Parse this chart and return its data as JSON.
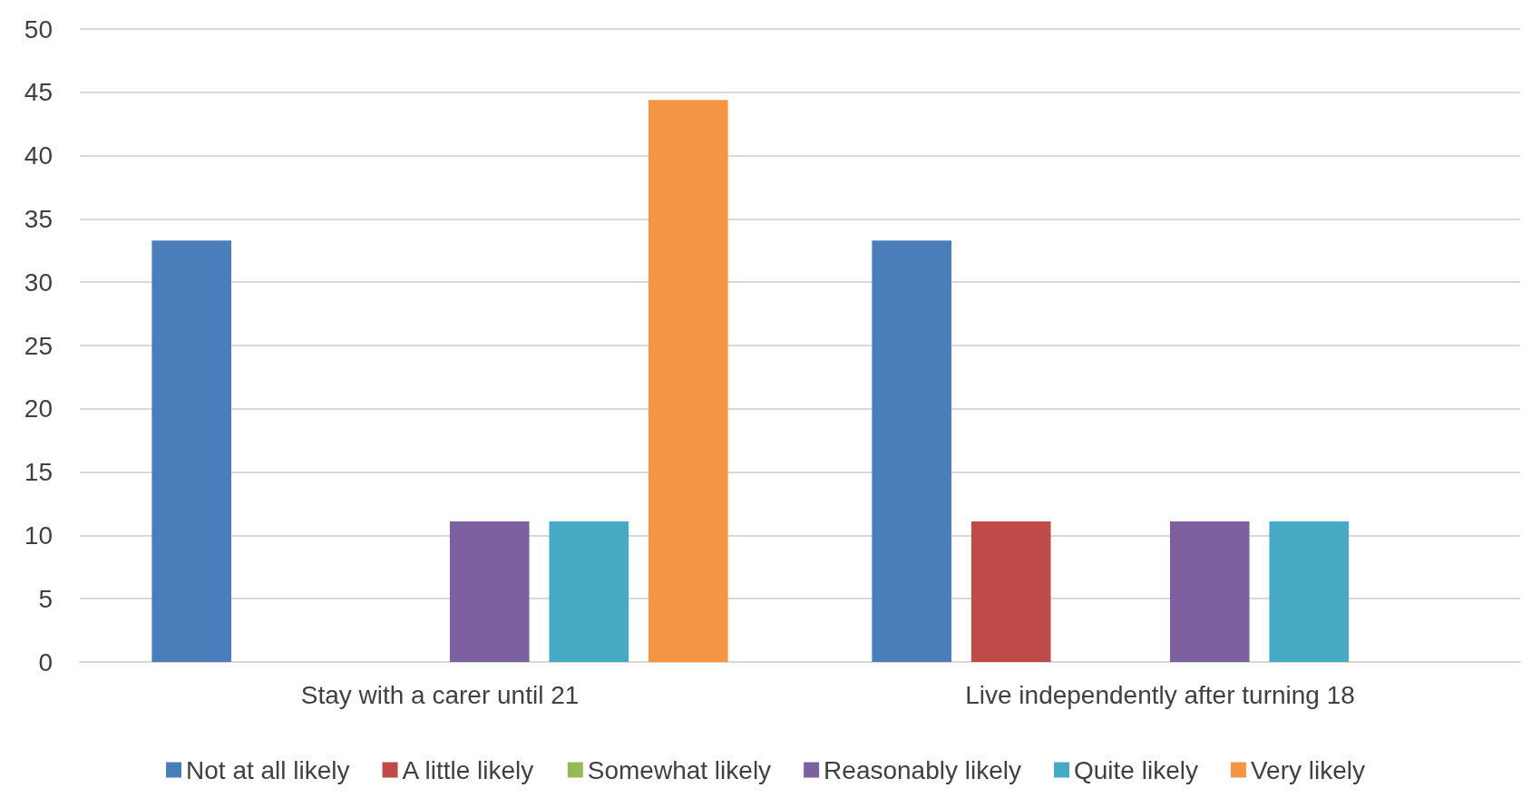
{
  "chart_data": {
    "type": "bar",
    "categories": [
      "Stay with a carer until 21",
      "Live independently after turning 18"
    ],
    "series": [
      {
        "name": "Not at all likely",
        "color": "#4a7ebb",
        "values": [
          33.3,
          33.3
        ]
      },
      {
        "name": "A little likely",
        "color": "#be4b48",
        "values": [
          0,
          11.1
        ]
      },
      {
        "name": "Somewhat likely",
        "color": "#98b954",
        "values": [
          0,
          0
        ]
      },
      {
        "name": "Reasonably likely",
        "color": "#7d60a0",
        "values": [
          11.1,
          11.1
        ]
      },
      {
        "name": "Quite likely",
        "color": "#46aac5",
        "values": [
          11.1,
          11.1
        ]
      },
      {
        "name": "Very likely",
        "color": "#f59646",
        "values": [
          44.4,
          0
        ]
      }
    ],
    "ylim": [
      0,
      50
    ],
    "yticks": [
      0,
      5,
      10,
      15,
      20,
      25,
      30,
      35,
      40,
      45,
      50
    ],
    "grid": "y",
    "legend": "bottom"
  }
}
